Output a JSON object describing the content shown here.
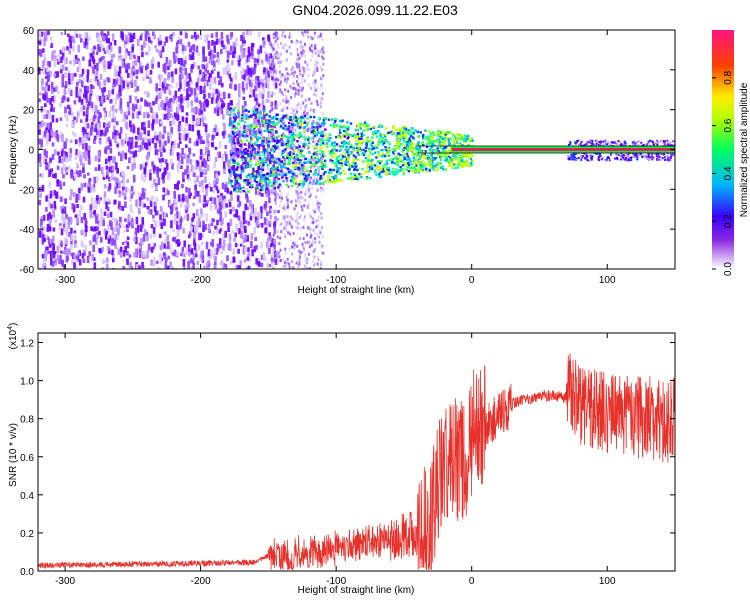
{
  "title": "GN04.2026.099.11.22.E03",
  "chart_data": [
    {
      "type": "heatmap",
      "xlabel": "Height of straight line (km)",
      "ylabel": "Frequency (Hz)",
      "xlim": [
        -320,
        150
      ],
      "ylim": [
        -60,
        60
      ],
      "x_ticks": [
        -300,
        -200,
        -100,
        0,
        100
      ],
      "y_ticks": [
        60,
        40,
        20,
        0,
        -20,
        -40,
        -60
      ],
      "colorbar": {
        "label": "Normalized spectral amplitude",
        "range": [
          0.0,
          1.0
        ],
        "ticks": [
          "0.0",
          "0.2",
          "0.4",
          "0.6",
          "0.8"
        ],
        "colormap": [
          "#ffffff",
          "#7a00ff",
          "#0000ff",
          "#00c8ff",
          "#00ff40",
          "#ffff00",
          "#ff0000",
          "#ff1493"
        ]
      },
      "description_points": {
        "noise_region_x": [
          -320,
          -150
        ],
        "signal_band_center_hz": 0,
        "strong_line_x": [
          -10,
          150
        ],
        "line_color": "#e01e5a"
      }
    },
    {
      "type": "line",
      "xlabel": "Height of straight line (km)",
      "ylabel": "SNR (10 * v/v)",
      "y_multiplier": "(x10",
      "y_multiplier_exp": "4",
      "xlim": [
        -320,
        150
      ],
      "ylim": [
        0.0,
        1.25
      ],
      "x_ticks": [
        -300,
        -200,
        -100,
        0,
        100
      ],
      "y_ticks": [
        "0.0",
        "0.2",
        "0.4",
        "0.6",
        "0.8",
        "1.0",
        "1.2"
      ],
      "series_color": "#e8302a",
      "x": [
        -320,
        -250,
        -200,
        -160,
        -150,
        -140,
        -120,
        -100,
        -80,
        -60,
        -40,
        -30,
        -25,
        -20,
        -15,
        -10,
        -5,
        0,
        10,
        20,
        30,
        40,
        50,
        60,
        70,
        72,
        80,
        90,
        100,
        110,
        120,
        130,
        140,
        150
      ],
      "values": [
        0.03,
        0.035,
        0.04,
        0.045,
        0.08,
        0.07,
        0.09,
        0.12,
        0.15,
        0.17,
        0.2,
        0.25,
        0.45,
        0.55,
        0.6,
        0.55,
        0.6,
        0.72,
        0.75,
        0.82,
        0.88,
        0.9,
        0.92,
        0.92,
        0.91,
        0.95,
        0.88,
        0.85,
        0.82,
        0.84,
        0.8,
        0.82,
        0.78,
        0.8
      ]
    }
  ]
}
